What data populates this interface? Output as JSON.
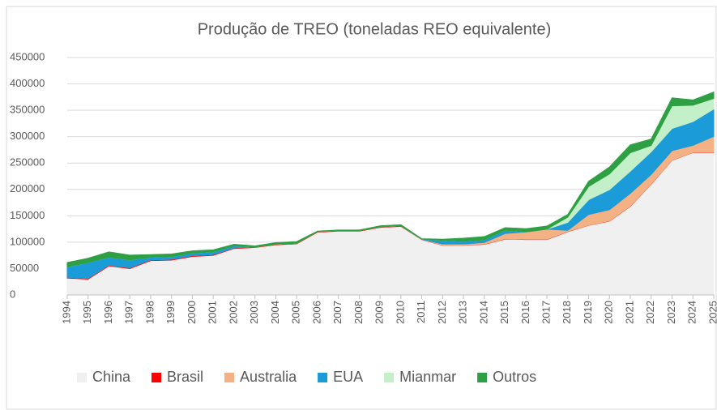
{
  "chart_data": {
    "type": "stacked_area",
    "title": "Produção de TREO (toneladas REO equivalente)",
    "x": [
      1994,
      1995,
      1996,
      1997,
      1998,
      1999,
      2000,
      2001,
      2002,
      2003,
      2004,
      2005,
      2006,
      2007,
      2008,
      2009,
      2010,
      2011,
      2012,
      2013,
      2014,
      2015,
      2016,
      2017,
      2018,
      2019,
      2020,
      2021,
      2022,
      2023,
      2024,
      2025
    ],
    "series": [
      {
        "name": "China",
        "color": "#f0f0f0",
        "values": [
          32000,
          30000,
          55000,
          50000,
          65000,
          66000,
          73000,
          75000,
          88000,
          90000,
          95000,
          97000,
          119000,
          121000,
          121000,
          128000,
          130000,
          105000,
          94000,
          94000,
          96000,
          106000,
          105000,
          105000,
          120000,
          132000,
          140000,
          168000,
          210000,
          255000,
          270000,
          270000
        ]
      },
      {
        "name": "Brasil",
        "color": "#ff0000",
        "values": [
          1500,
          1500,
          1500,
          1500,
          1500,
          1500,
          1500,
          1500,
          1000,
          1000,
          1000,
          1000,
          1000,
          1000,
          1000,
          1000,
          1000,
          500,
          500,
          500,
          500,
          500,
          500,
          500,
          500,
          500,
          500,
          500,
          500,
          500,
          500,
          500
        ]
      },
      {
        "name": "Australia",
        "color": "#f4b183",
        "values": [
          0,
          0,
          0,
          0,
          0,
          0,
          0,
          0,
          0,
          0,
          0,
          0,
          0,
          0,
          0,
          0,
          0,
          0,
          2000,
          2000,
          3000,
          10000,
          14000,
          19000,
          2000,
          20000,
          21000,
          24000,
          18000,
          18000,
          13000,
          30000
        ]
      },
      {
        "name": "EUA",
        "color": "#1b9bd7",
        "values": [
          20000,
          30000,
          15000,
          15000,
          5000,
          5000,
          5000,
          5000,
          4000,
          0,
          0,
          0,
          0,
          0,
          0,
          0,
          0,
          0,
          7000,
          5000,
          5000,
          6000,
          0,
          0,
          15000,
          28000,
          38000,
          42000,
          43000,
          42000,
          45000,
          52000
        ]
      },
      {
        "name": "Mianmar",
        "color": "#c3f0c8",
        "values": [
          0,
          0,
          0,
          0,
          0,
          0,
          0,
          0,
          0,
          0,
          0,
          0,
          0,
          0,
          0,
          0,
          0,
          0,
          0,
          0,
          0,
          0,
          0,
          0,
          10000,
          25000,
          30000,
          35000,
          12000,
          43000,
          31000,
          20000
        ]
      },
      {
        "name": "Outros",
        "color": "#2ea043",
        "values": [
          8000,
          8000,
          10000,
          9000,
          5000,
          5000,
          4000,
          4000,
          3000,
          2000,
          3000,
          3000,
          1000,
          1000,
          1000,
          2000,
          2000,
          1000,
          2000,
          6000,
          6000,
          5000,
          6000,
          6000,
          5000,
          10000,
          13000,
          15000,
          12000,
          15000,
          10000,
          12000
        ]
      }
    ],
    "ylim": [
      0,
      450000
    ],
    "yticks": [
      0,
      50000,
      100000,
      150000,
      200000,
      250000,
      300000,
      350000,
      400000,
      450000
    ],
    "grid": true,
    "legend": "bottom"
  }
}
